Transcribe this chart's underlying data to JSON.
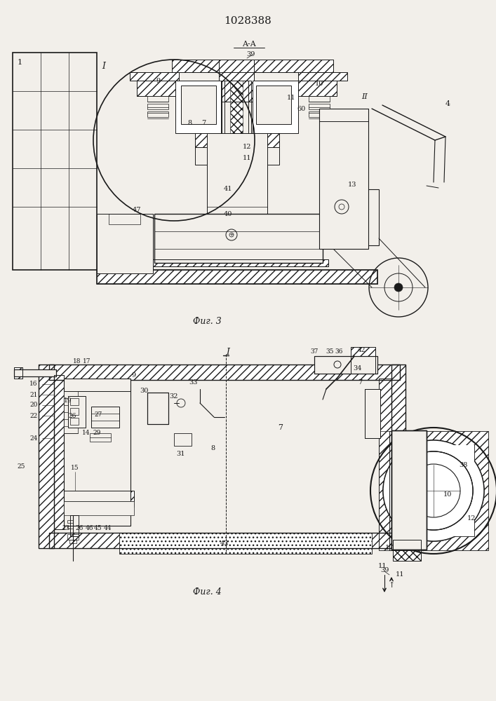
{
  "title": "1028388",
  "fig3_caption": "Фиг. 3",
  "fig4_caption": "Фиг. 4",
  "bg": "#f2efea",
  "lc": "#1a1a1a",
  "lw1": 0.7,
  "lw2": 1.2,
  "lw3": 1.8
}
